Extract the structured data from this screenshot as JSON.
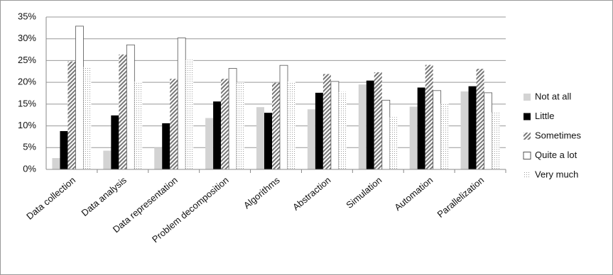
{
  "chart_data": {
    "type": "bar",
    "categories": [
      "Data collection",
      "Data analysis",
      "Data representation",
      "Problem decomposition",
      "Algorithms",
      "Abstraction",
      "Simulation",
      "Automation",
      "Parallelization"
    ],
    "series": [
      {
        "name": "Not at all",
        "color": "#d3d3d3",
        "pattern": "solid",
        "values": [
          2.6,
          4.3,
          5.0,
          11.8,
          14.3,
          13.8,
          19.5,
          14.4,
          17.9
        ]
      },
      {
        "name": "Little",
        "color": "#000000",
        "pattern": "solid",
        "values": [
          8.8,
          12.4,
          10.6,
          15.6,
          13.0,
          17.6,
          20.4,
          18.8,
          19.1
        ]
      },
      {
        "name": "Sometimes",
        "color": "#777777",
        "pattern": "hatch",
        "values": [
          24.8,
          26.4,
          20.8,
          20.8,
          19.9,
          21.9,
          22.3,
          24.0,
          23.1
        ]
      },
      {
        "name": "Quite a lot",
        "color": "#ffffff",
        "pattern": "solid",
        "values": [
          32.9,
          28.6,
          30.2,
          23.2,
          23.9,
          20.2,
          15.9,
          18.1,
          17.6
        ]
      },
      {
        "name": "Very much",
        "color": "#bbbbbb",
        "pattern": "dots",
        "values": [
          23.5,
          20.2,
          25.2,
          20.0,
          20.2,
          17.8,
          12.0,
          15.1,
          13.1
        ]
      }
    ],
    "ylim": [
      0,
      35
    ],
    "yticks": [
      {
        "value": 0,
        "label": "0%"
      },
      {
        "value": 5,
        "label": "5%"
      },
      {
        "value": 10,
        "label": "10%"
      },
      {
        "value": 15,
        "label": "15%"
      },
      {
        "value": 20,
        "label": "20%"
      },
      {
        "value": 25,
        "label": "25%"
      },
      {
        "value": 30,
        "label": "30%"
      },
      {
        "value": 35,
        "label": "35%"
      }
    ],
    "grid": true,
    "legend": "right"
  }
}
